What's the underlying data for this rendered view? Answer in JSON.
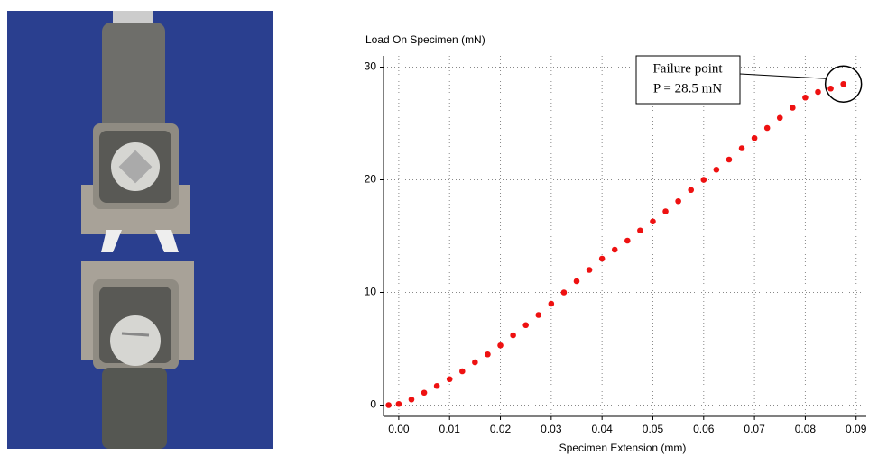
{
  "chart_data": {
    "type": "scatter",
    "y_label": "Load On Specimen (mN)",
    "x_label": "Specimen Extension (mm)",
    "annotation": [
      "Failure point",
      "P = 28.5 mN"
    ],
    "color": "#ee1111",
    "x": [
      -0.002,
      0,
      0.0025,
      0.005,
      0.0075,
      0.01,
      0.0125,
      0.015,
      0.0175,
      0.02,
      0.0225,
      0.025,
      0.0275,
      0.03,
      0.0325,
      0.035,
      0.0375,
      0.04,
      0.0425,
      0.045,
      0.0475,
      0.05,
      0.0525,
      0.055,
      0.0575,
      0.06,
      0.0625,
      0.065,
      0.0675,
      0.07,
      0.0725,
      0.075,
      0.0775,
      0.08,
      0.0825,
      0.085,
      0.0875
    ],
    "values": [
      0,
      0.1,
      0.5,
      1.1,
      1.7,
      2.3,
      3.0,
      3.8,
      4.5,
      5.3,
      6.2,
      7.1,
      8.0,
      9.0,
      10.0,
      11.0,
      12.0,
      13.0,
      13.8,
      14.6,
      15.5,
      16.3,
      17.2,
      18.1,
      19.1,
      20.0,
      20.9,
      21.8,
      22.8,
      23.7,
      24.6,
      25.5,
      26.4,
      27.3,
      27.8,
      28.1,
      28.5
    ],
    "xlim": [
      -0.003,
      0.092
    ],
    "ylim": [
      -1,
      31
    ],
    "xticks": [
      {
        "value": 0,
        "label": "0.00"
      },
      0.01,
      0.02,
      0.03,
      0.04,
      0.05,
      0.06,
      0.07,
      0.08,
      0.09
    ],
    "yticks": [
      0,
      10,
      20,
      30
    ],
    "grid": true
  }
}
